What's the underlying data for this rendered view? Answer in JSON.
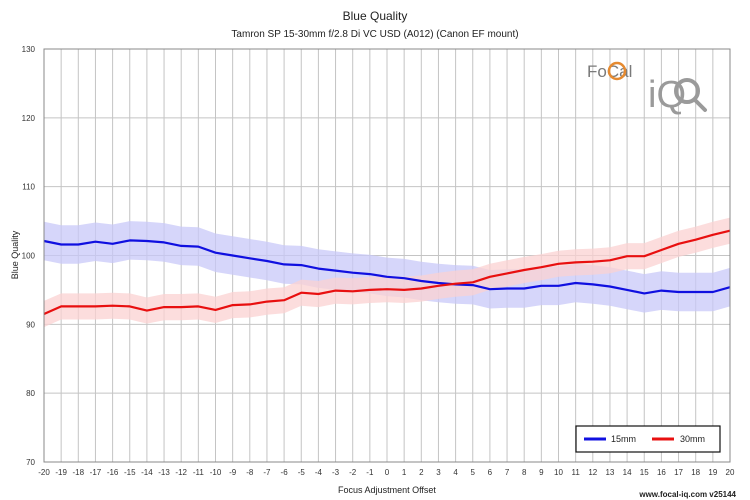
{
  "chart_data": {
    "type": "line",
    "title": "Blue Quality",
    "subtitle": "Tamron SP 15-30mm f/2.8 Di VC USD (A012) (Canon EF mount)",
    "xlabel": "Focus Adjustment Offset",
    "ylabel": "Blue Quality",
    "xlim": [
      -20,
      20
    ],
    "ylim": [
      70,
      130
    ],
    "x_ticks": [
      -20,
      -19,
      -18,
      -17,
      -16,
      -15,
      -14,
      -13,
      -12,
      -11,
      -10,
      -9,
      -8,
      -7,
      -6,
      -5,
      -4,
      -3,
      -2,
      -1,
      0,
      1,
      2,
      3,
      4,
      5,
      6,
      7,
      8,
      9,
      10,
      11,
      12,
      13,
      14,
      15,
      16,
      17,
      18,
      19,
      20
    ],
    "y_ticks": [
      70,
      80,
      90,
      100,
      110,
      120,
      130
    ],
    "grid": true,
    "legend_position": "bottom-right",
    "x": [
      -20,
      -19,
      -18,
      -17,
      -16,
      -15,
      -14,
      -13,
      -12,
      -11,
      -10,
      -9,
      -8,
      -7,
      -6,
      -5,
      -4,
      -3,
      -2,
      -1,
      0,
      1,
      2,
      3,
      4,
      5,
      6,
      7,
      8,
      9,
      10,
      11,
      12,
      13,
      14,
      15,
      16,
      17,
      18,
      19,
      20
    ],
    "series": [
      {
        "name": "15mm",
        "color": "#1010e0",
        "band_color": "#c8c8f8",
        "values": [
          102.1,
          101.6,
          101.6,
          102.0,
          101.7,
          102.2,
          102.1,
          101.9,
          101.4,
          101.3,
          100.4,
          100.0,
          99.6,
          99.2,
          98.7,
          98.6,
          98.1,
          97.8,
          97.5,
          97.3,
          96.9,
          96.7,
          96.3,
          96.0,
          95.8,
          95.7,
          95.1,
          95.2,
          95.2,
          95.6,
          95.6,
          96.0,
          95.8,
          95.5,
          95.0,
          94.5,
          94.9,
          94.7,
          94.7,
          94.7,
          95.4
        ],
        "band_width": 2.8
      },
      {
        "name": "30mm",
        "color": "#e81010",
        "band_color": "#fbd2d2",
        "values": [
          91.5,
          92.6,
          92.6,
          92.6,
          92.7,
          92.6,
          92.0,
          92.5,
          92.5,
          92.6,
          92.1,
          92.8,
          92.9,
          93.3,
          93.5,
          94.6,
          94.4,
          94.9,
          94.8,
          95.0,
          95.1,
          95.0,
          95.2,
          95.6,
          95.9,
          96.1,
          96.9,
          97.4,
          97.9,
          98.3,
          98.8,
          99.0,
          99.1,
          99.3,
          99.9,
          99.9,
          100.8,
          101.7,
          102.3,
          103.0,
          103.6
        ],
        "band_width": 1.9
      }
    ],
    "watermark": "FoCal iQ",
    "footer": "www.focal-iq.com  v25144"
  }
}
